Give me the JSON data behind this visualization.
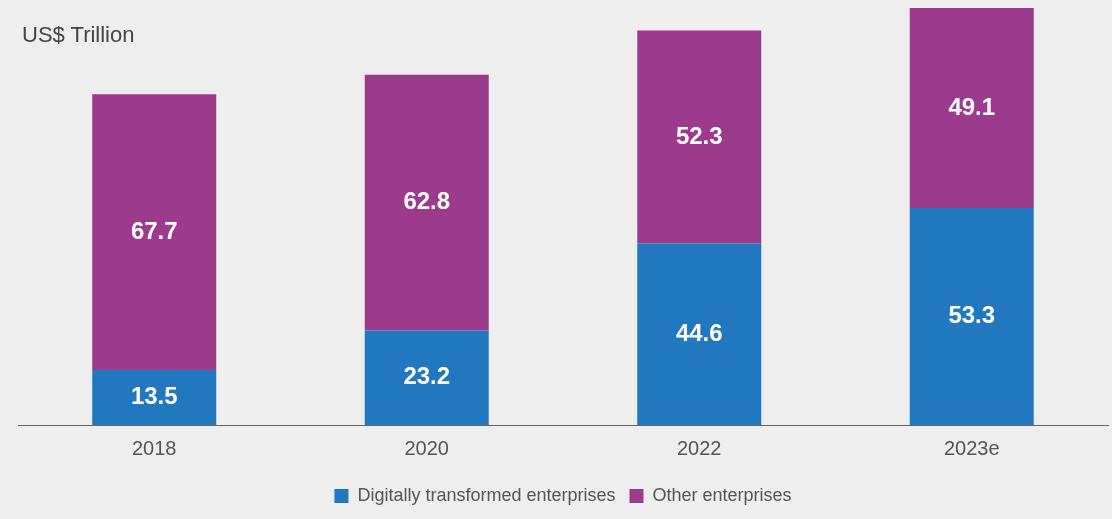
{
  "chart_data": {
    "type": "bar",
    "ylabel": "US$ Trillion",
    "categories": [
      "2018",
      "2020",
      "2022",
      "2023e"
    ],
    "series": [
      {
        "name": "Digitally transformed enterprises",
        "color": "#2178be",
        "values": [
          13.5,
          23.2,
          44.6,
          53.3
        ]
      },
      {
        "name": "Other enterprises",
        "color": "#9c3b8c",
        "values": [
          67.7,
          62.8,
          52.3,
          49.1
        ]
      }
    ],
    "stacked": true,
    "data_labels": true,
    "legend": "bottom",
    "grid": false
  }
}
